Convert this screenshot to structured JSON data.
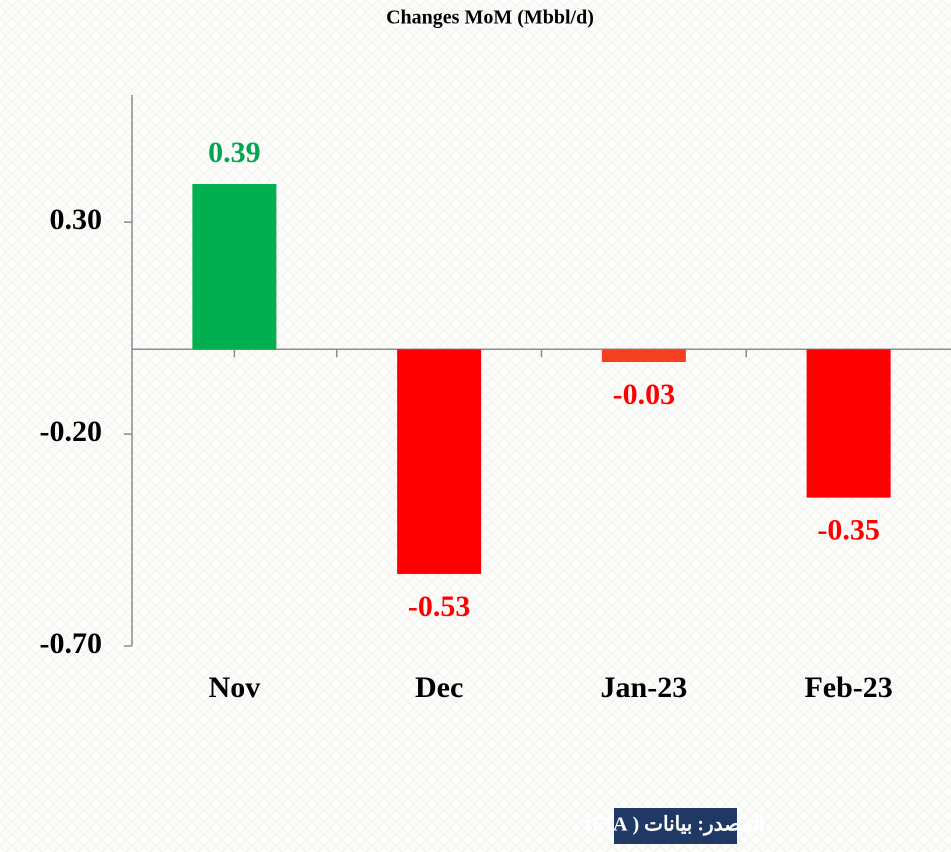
{
  "chart_data": {
    "type": "bar",
    "title": "Changes MoM (Mbbl/d)",
    "categories": [
      "Nov",
      "Dec",
      "Jan-23",
      "Feb-23"
    ],
    "values": [
      0.39,
      -0.53,
      -0.03,
      -0.35
    ],
    "colors": [
      "#00b050",
      "#ff0000",
      "#f5401e",
      "#ff0000"
    ],
    "ylim": [
      -0.7,
      0.6
    ],
    "yticks": [
      {
        "value": 0.3,
        "label": "0.30"
      },
      {
        "value": -0.2,
        "label": "-0.20"
      },
      {
        "value": -0.7,
        "label": "-0.70"
      }
    ],
    "grid": false,
    "source": "المصدر: بيانات ( EIA)"
  }
}
